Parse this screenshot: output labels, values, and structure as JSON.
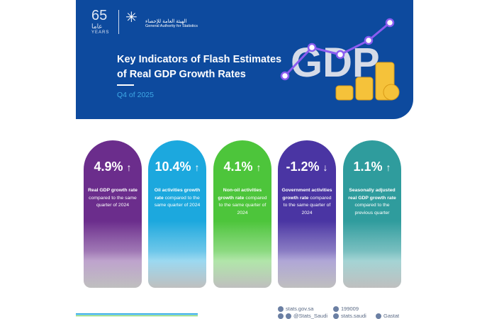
{
  "header": {
    "logo_65": "65",
    "logo_years": "YEARS",
    "logo_arabic_years": "عاما",
    "org_arabic": "الهيئة العامة للإحصاء",
    "org_name": "General Authority for Statistics",
    "title_line1": "Key Indicators of Flash Estimates",
    "title_line2": "of Real GDP Growth Rates",
    "period": "Q4 of 2025",
    "graphic_text": "GDP"
  },
  "cards": [
    {
      "value": "4.9%",
      "arrow": "↑",
      "bold": "Real GDP growth rate",
      "rest": " compared to the same quarter of 2024",
      "color": "#6b2d8c"
    },
    {
      "value": "10.4%",
      "arrow": "↑",
      "bold": "Oil activities growth rate",
      "rest": " compared to the same quarter of 2024",
      "color": "#1ca8de"
    },
    {
      "value": "4.1%",
      "arrow": "↑",
      "bold": "Non-oil activities growth rate",
      "rest": " compared to the same quarter of 2024",
      "color": "#4dc53b"
    },
    {
      "value": "-1.2%",
      "arrow": "↓",
      "bold": "Government activities growth rate",
      "rest": " compared to the same quarter of 2024",
      "color": "#4a35a3"
    },
    {
      "value": "1.1%",
      "arrow": "↑",
      "bold": "Seasonally adjusted real GDP growth rate",
      "rest": " compared to the previous quarter",
      "color": "#2f9c9d"
    }
  ],
  "footer": {
    "website": "stats.gov.sa",
    "phone": "199009",
    "handle": "@Stats_Saudi",
    "facebook": "stats.saudi",
    "linkedin": "Gastat"
  }
}
